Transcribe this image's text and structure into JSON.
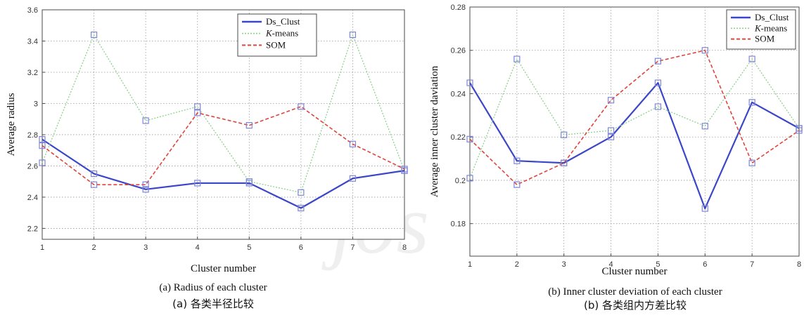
{
  "colors": {
    "ds_clust": "#3b46c8",
    "kmeans": "#8fd18f",
    "som": "#e0443c",
    "marker": "#7f86d8"
  },
  "watermark_text": "jos",
  "chart_data": [
    {
      "type": "line",
      "xlabel": "Cluster number",
      "ylabel": "Average radius",
      "caption_en": "(a) Radius of each cluster",
      "caption_zh": "(a)  各类半径比较",
      "x": [
        1,
        2,
        3,
        4,
        5,
        6,
        7,
        8
      ],
      "xticks": [
        "1",
        "2",
        "3",
        "4",
        "5",
        "6",
        "7",
        "8"
      ],
      "ylim": [
        2.13,
        3.6
      ],
      "yticks": [
        "2.2",
        "2.4",
        "2.6",
        "2.8",
        "3",
        "3.2",
        "3.4",
        "3.6"
      ],
      "ytick_values": [
        2.2,
        2.4,
        2.6,
        2.8,
        3.0,
        3.2,
        3.4,
        3.6
      ],
      "grid": true,
      "legend_position": "top-right",
      "series": [
        {
          "name": "Ds_Clust",
          "values": [
            2.77,
            2.55,
            2.45,
            2.49,
            2.49,
            2.33,
            2.52,
            2.57
          ],
          "style": "solid"
        },
        {
          "name": "K-means",
          "legend_italic": "K",
          "legend_rest": "-means",
          "values": [
            2.62,
            3.44,
            2.89,
            2.98,
            2.5,
            2.43,
            3.44,
            2.57
          ],
          "style": "dotted"
        },
        {
          "name": "SOM",
          "values": [
            2.73,
            2.48,
            2.48,
            2.94,
            2.86,
            2.98,
            2.74,
            2.58
          ],
          "style": "dashed"
        }
      ]
    },
    {
      "type": "line",
      "xlabel": "Cluster number",
      "ylabel": "Average inner cluster daviation",
      "caption_en": "(b) Inner cluster deviation of each cluster",
      "caption_zh": "(b)  各类组内方差比较",
      "x": [
        1,
        2,
        3,
        4,
        5,
        6,
        7,
        8
      ],
      "xticks": [
        "1",
        "2",
        "3",
        "4",
        "5",
        "6",
        "7",
        "8"
      ],
      "ylim": [
        0.165,
        0.28
      ],
      "yticks": [
        "0.18",
        "0.2",
        "0.22",
        "0.24",
        "0.26",
        "0.28"
      ],
      "ytick_values": [
        0.18,
        0.2,
        0.22,
        0.24,
        0.26,
        0.28
      ],
      "grid": true,
      "legend_position": "top-right",
      "series": [
        {
          "name": "Ds_Clust",
          "values": [
            0.245,
            0.209,
            0.208,
            0.22,
            0.245,
            0.187,
            0.236,
            0.224
          ],
          "style": "solid"
        },
        {
          "name": "K-means",
          "legend_italic": "K",
          "legend_rest": "-means",
          "values": [
            0.201,
            0.256,
            0.221,
            0.223,
            0.234,
            0.225,
            0.256,
            0.224
          ],
          "style": "dotted"
        },
        {
          "name": "SOM",
          "values": [
            0.219,
            0.198,
            0.208,
            0.237,
            0.255,
            0.26,
            0.208,
            0.223
          ],
          "style": "dashed"
        }
      ]
    }
  ]
}
